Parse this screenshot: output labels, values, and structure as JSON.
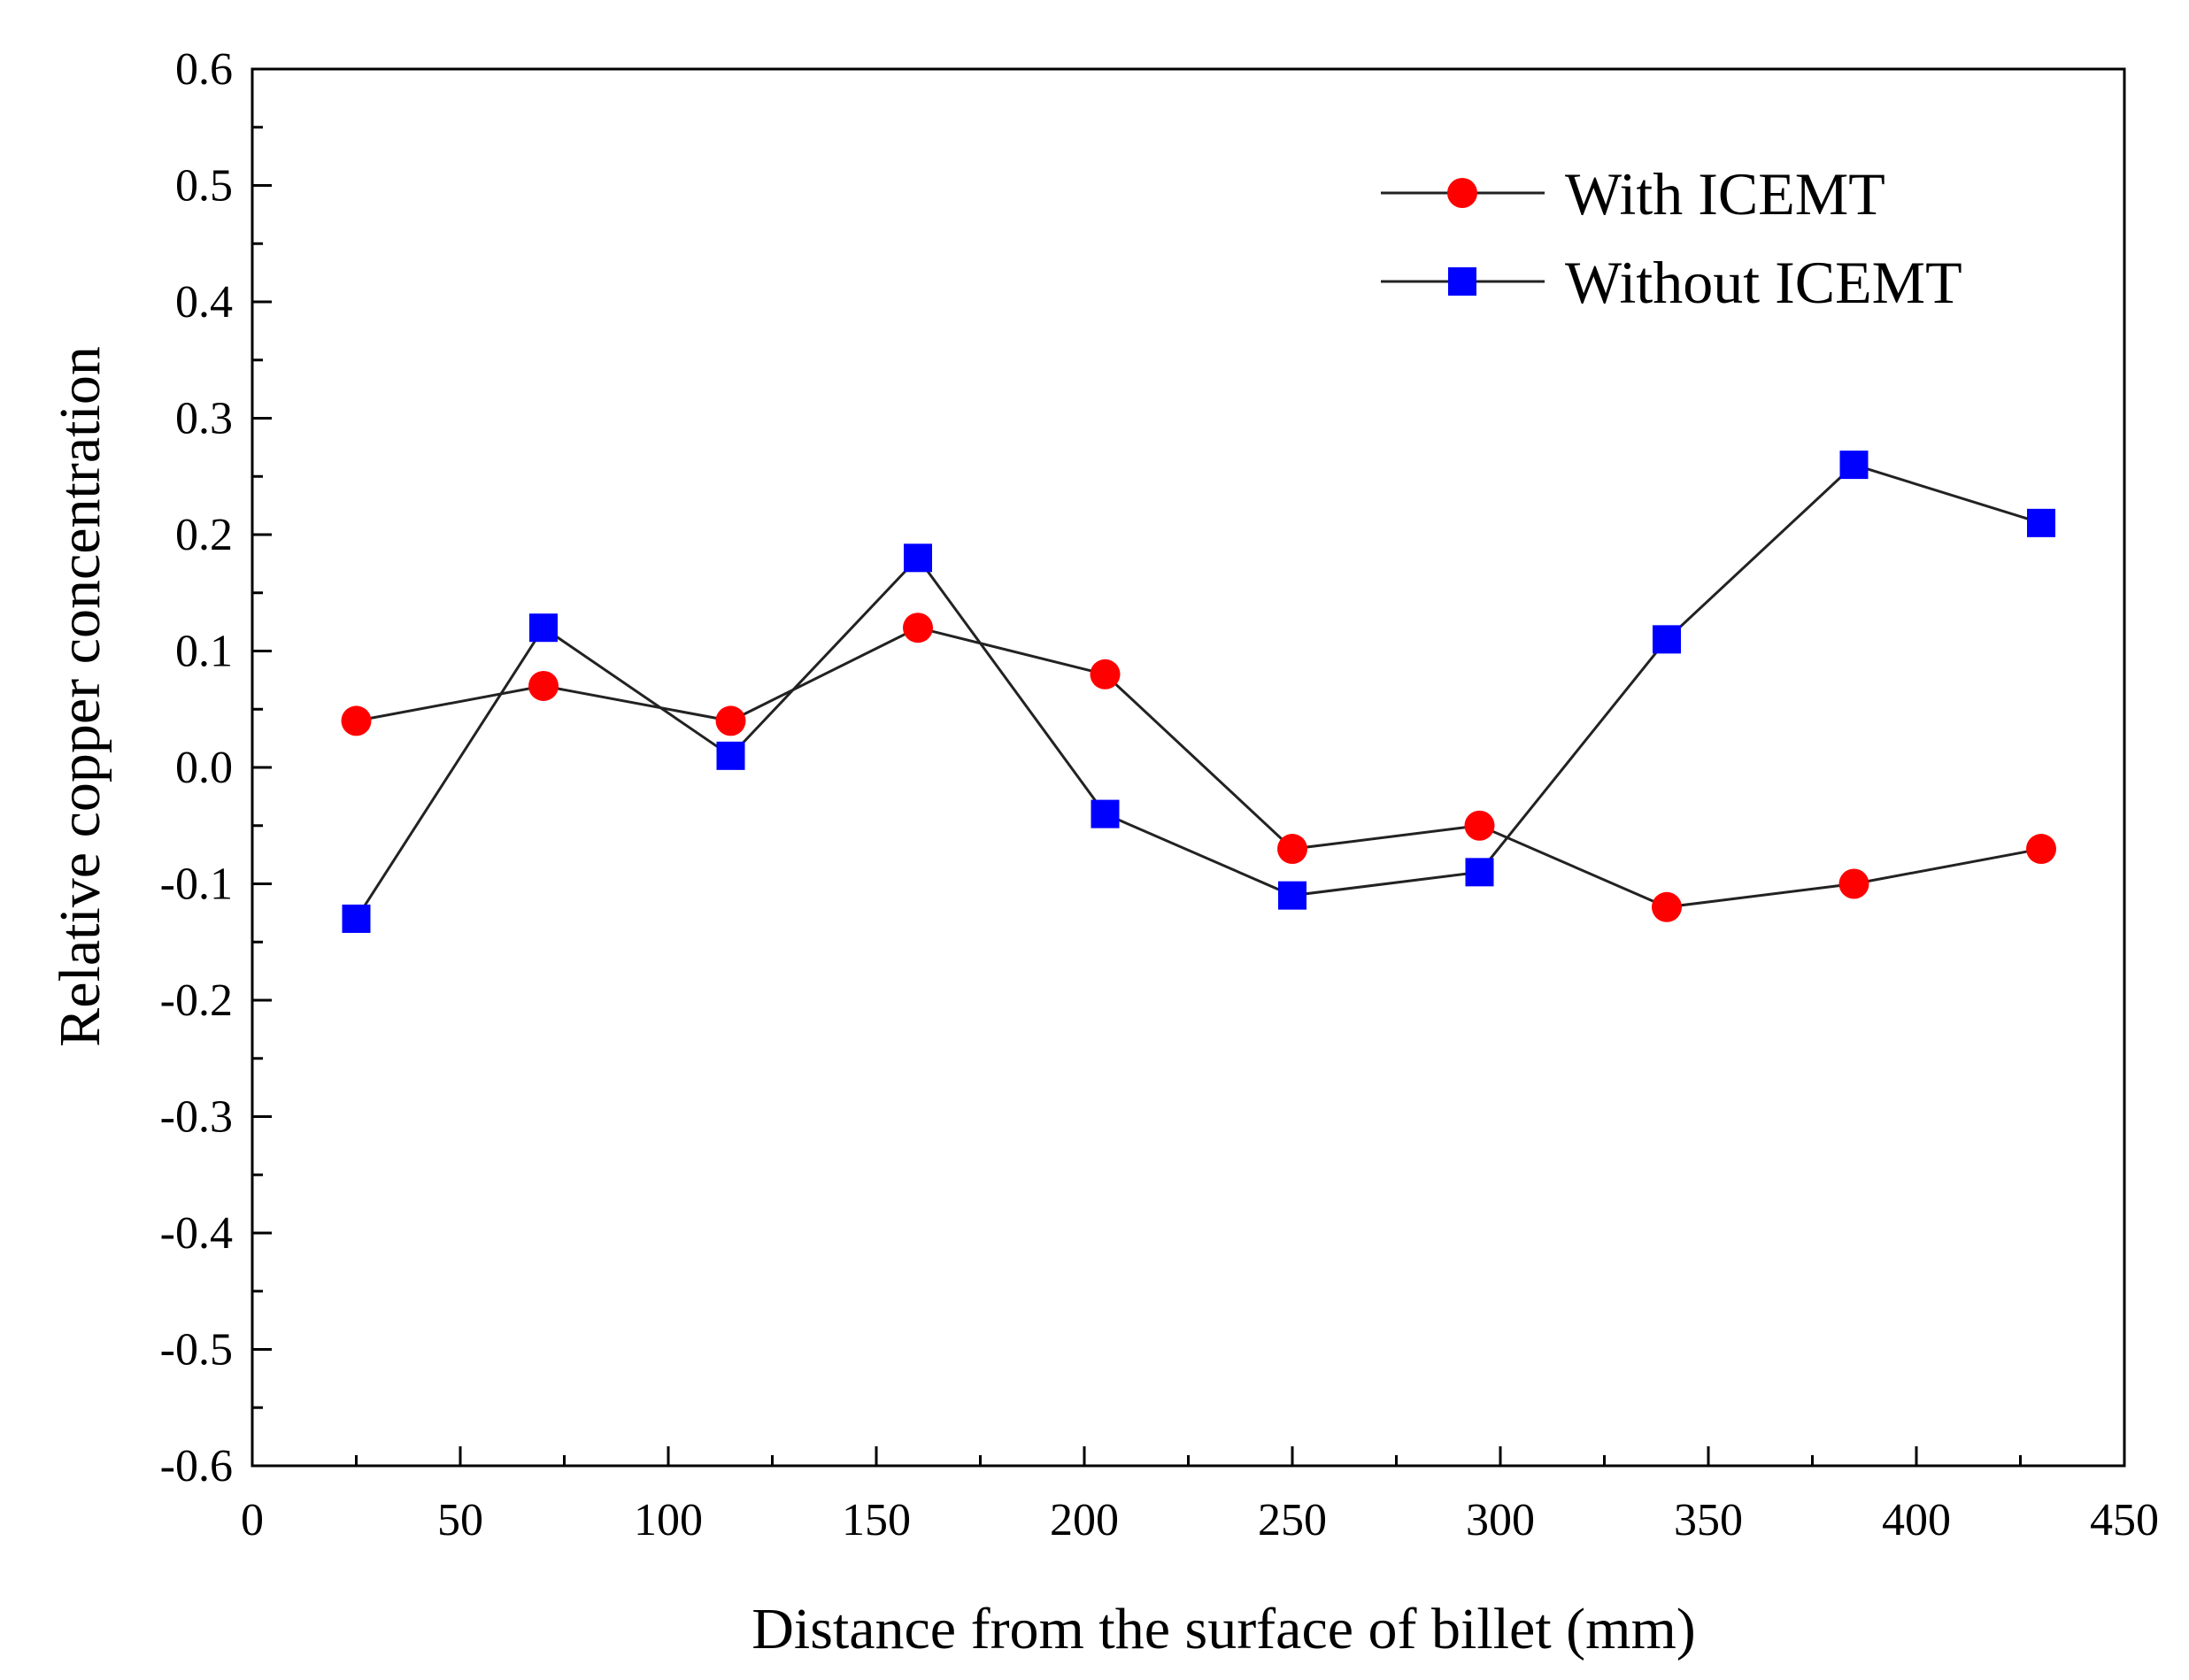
{
  "chart_data": {
    "type": "line",
    "title": "",
    "xlabel": "Distance from the surface of billet (mm)",
    "ylabel": "Relative copper concentration",
    "xlim": [
      0,
      450
    ],
    "ylim": [
      -0.6,
      0.6
    ],
    "x_ticks": [
      "0",
      "50",
      "100",
      "150",
      "200",
      "250",
      "300",
      "350",
      "400",
      "450"
    ],
    "y_ticks": [
      "-0.6",
      "-0.5",
      "-0.4",
      "-0.3",
      "-0.2",
      "-0.1",
      "0.0",
      "0.1",
      "0.2",
      "0.3",
      "0.4",
      "0.5",
      "0.6"
    ],
    "legend_position": "top-right",
    "grid": false,
    "x": [
      25,
      70,
      115,
      160,
      205,
      250,
      295,
      340,
      385,
      430
    ],
    "series": [
      {
        "name": "With ICEMT",
        "marker": "circle",
        "color": "#ff0000",
        "values": [
          0.04,
          0.07,
          0.04,
          0.12,
          0.08,
          -0.07,
          -0.05,
          -0.12,
          -0.1,
          -0.07
        ]
      },
      {
        "name": "Without ICEMT",
        "marker": "square",
        "color": "#0000ff",
        "values": [
          -0.13,
          0.12,
          0.01,
          0.18,
          -0.04,
          -0.11,
          -0.09,
          0.11,
          0.26,
          0.21
        ]
      }
    ]
  }
}
